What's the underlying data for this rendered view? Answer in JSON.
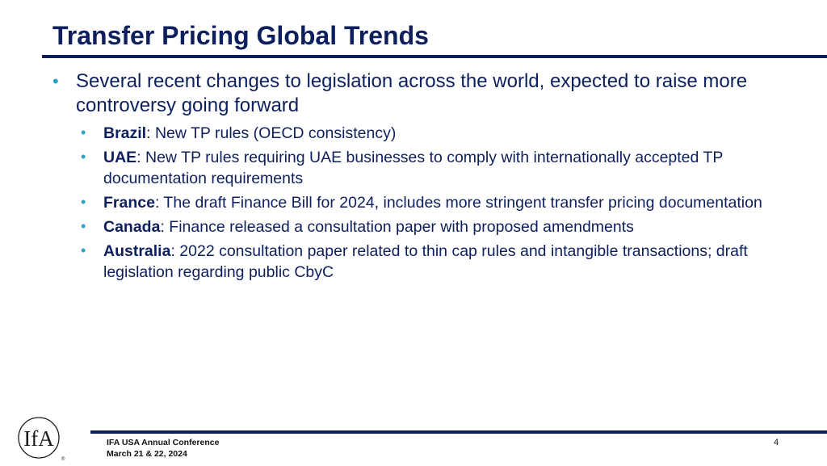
{
  "slide": {
    "title": "Transfer Pricing Global Trends",
    "main_bullet": "Several recent changes to legislation across the world, expected to raise more controversy going forward",
    "sub_bullets": [
      {
        "country": "Brazil",
        "text": ": New TP rules (OECD consistency)"
      },
      {
        "country": "UAE",
        "text": ": New TP rules requiring UAE businesses to comply with internationally accepted TP documentation requirements"
      },
      {
        "country": "France",
        "text": ": The draft Finance Bill for 2024, includes more stringent transfer pricing documentation"
      },
      {
        "country": "Canada",
        "text": ": Finance released a consultation paper with proposed amendments"
      },
      {
        "country": "Australia",
        "text": ": 2022 consultation paper related to thin cap rules and intangible transactions; draft legislation regarding public CbyC"
      }
    ]
  },
  "footer": {
    "conference": "IFA USA Annual Conference",
    "dates": "March 21 & 22, 2024",
    "page_number": "4"
  },
  "logo": {
    "icon": "ifa-logo-icon",
    "mark": "IfA"
  },
  "colors": {
    "primary": "#0d1f5c",
    "bullet": "#2ba3c9"
  }
}
